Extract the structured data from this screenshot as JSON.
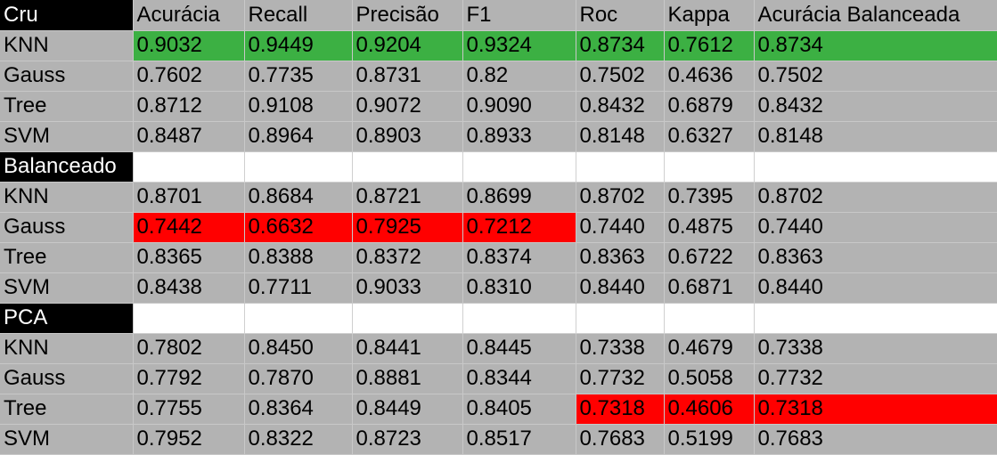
{
  "header": [
    "Cru",
    "Acurácia",
    "Recall",
    "Precisão",
    "F1",
    "Roc",
    "Kappa",
    "Acurácia Balanceada"
  ],
  "colors": {
    "highlight_best": "#3cb043",
    "highlight_worst": "#ff0000",
    "section_label": "#000000"
  },
  "sections": [
    {
      "label": "",
      "rows": [
        {
          "model": "KNN",
          "values": [
            "0.9032",
            "0.9449",
            "0.9204",
            "0.9324",
            "0.8734",
            "0.7612",
            "0.8734"
          ]
        },
        {
          "model": "Gauss",
          "values": [
            "0.7602",
            "0.7735",
            "0.8731",
            "0.82",
            "0.7502",
            "0.4636",
            "0.7502"
          ]
        },
        {
          "model": "Tree",
          "values": [
            "0.8712",
            "0.9108",
            "0.9072",
            "0.9090",
            "0.8432",
            "0.6879",
            "0.8432"
          ]
        },
        {
          "model": "SVM",
          "values": [
            "0.8487",
            "0.8964",
            "0.8903",
            "0.8933",
            "0.8148",
            "0.6327",
            "0.8148"
          ]
        }
      ]
    },
    {
      "label": "Balanceado",
      "rows": [
        {
          "model": "KNN",
          "values": [
            "0.8701",
            "0.8684",
            "0.8721",
            "0.8699",
            "0.8702",
            "0.7395",
            "0.8702"
          ]
        },
        {
          "model": "Gauss",
          "values": [
            "0.7442",
            "0.6632",
            "0.7925",
            "0.7212",
            "0.7440",
            "0.4875",
            "0.7440"
          ]
        },
        {
          "model": "Tree",
          "values": [
            "0.8365",
            "0.8388",
            "0.8372",
            "0.8374",
            "0.8363",
            "0.6722",
            "0.8363"
          ]
        },
        {
          "model": "SVM",
          "values": [
            "0.8438",
            "0.7711",
            "0.9033",
            "0.8310",
            "0.8440",
            "0.6871",
            "0.8440"
          ]
        }
      ]
    },
    {
      "label": "PCA",
      "rows": [
        {
          "model": "KNN",
          "values": [
            "0.7802",
            "0.8450",
            "0.8441",
            "0.8445",
            "0.7338",
            "0.4679",
            "0.7338"
          ]
        },
        {
          "model": "Gauss",
          "values": [
            "0.7792",
            "0.7870",
            "0.8881",
            "0.8344",
            "0.7732",
            "0.5058",
            "0.7732"
          ]
        },
        {
          "model": "Tree",
          "values": [
            "0.7755",
            "0.8364",
            "0.8449",
            "0.8405",
            "0.7318",
            "0.4606",
            "0.7318"
          ]
        },
        {
          "model": "SVM",
          "values": [
            "0.7952",
            "0.8322",
            "0.8723",
            "0.8517",
            "0.7683",
            "0.5199",
            "0.7683"
          ]
        }
      ]
    }
  ]
}
